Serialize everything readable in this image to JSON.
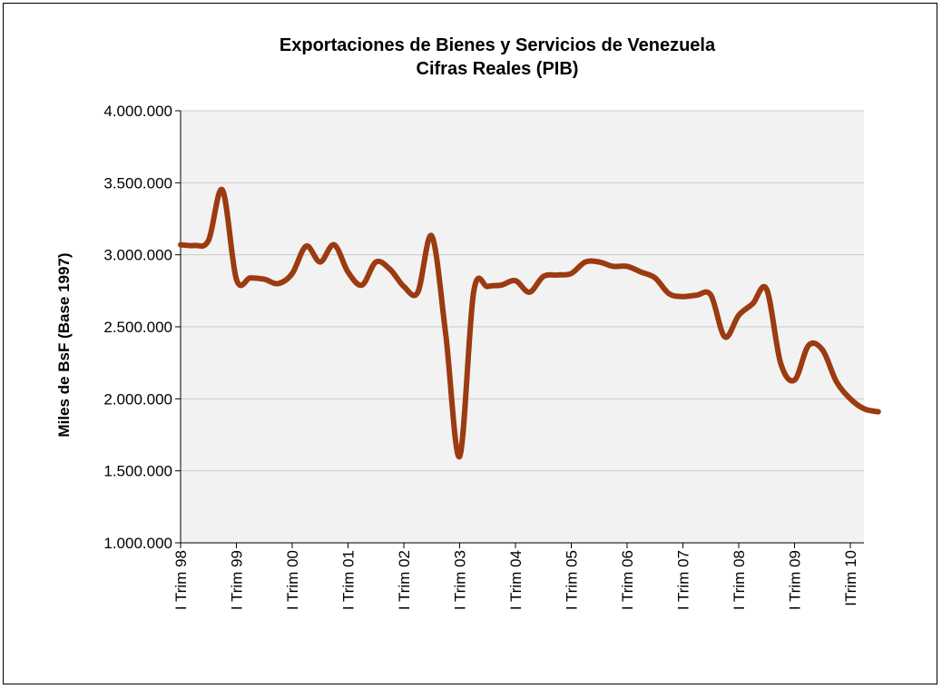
{
  "chart_data": {
    "type": "line",
    "title": "Exportaciones de Bienes y Servicios de Venezuela",
    "subtitle": "Cifras Reales (PIB)",
    "xlabel": "",
    "ylabel": "Miles de BsF (Base 1997)",
    "ylim": [
      1000000,
      4000000
    ],
    "yticks": [
      "1.000.000",
      "1.500.000",
      "2.000.000",
      "2.500.000",
      "3.000.000",
      "3.500.000",
      "4.000.000"
    ],
    "xticks": [
      "I Trim 98",
      "I Trim 99",
      "I Trim 00",
      "I Trim 01",
      "I Trim 02",
      "I Trim 03",
      "I Trim 04",
      "I Trim 05",
      "I Trim 06",
      "I Trim 07",
      "I Trim 08",
      "I Trim 09",
      "ITrim 10"
    ],
    "grid": true,
    "legend": "none",
    "colors": {
      "line": "#9C3A10",
      "plot_bg": "#F2F2F2",
      "grid": "#C8C8C8"
    },
    "series": [
      {
        "values": [
          3070000,
          3065000,
          3100000,
          3450000,
          2830000,
          2840000,
          2830000,
          2800000,
          2870000,
          3060000,
          2950000,
          3070000,
          2880000,
          2790000,
          2950000,
          2900000,
          2780000,
          2740000,
          3130000,
          2450000,
          1600000,
          2740000,
          2780000,
          2790000,
          2820000,
          2740000,
          2850000,
          2860000,
          2870000,
          2950000,
          2950000,
          2920000,
          2920000,
          2880000,
          2840000,
          2730000,
          2710000,
          2720000,
          2720000,
          2430000,
          2580000,
          2660000,
          2760000,
          2250000,
          2130000,
          2370000,
          2340000,
          2120000,
          2000000,
          1930000,
          1910000
        ]
      }
    ]
  }
}
